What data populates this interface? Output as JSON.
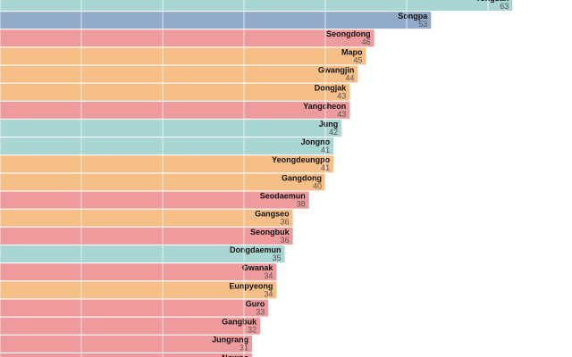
{
  "chart_data": {
    "type": "bar",
    "orientation": "horizontal",
    "categories": [
      "Yongsan",
      "Songpa",
      "Seongdong",
      "Mapo",
      "Gwangjin",
      "Dongjak",
      "Yangcheon",
      "Jung",
      "Jongno",
      "Yeongdeungpo",
      "Gangdong",
      "Seodaemun",
      "Gangseo",
      "Seongbuk",
      "Dongdaemun",
      "Gwanak",
      "Eunpyeong",
      "Guro",
      "Gangbuk",
      "Jungrang",
      "Nowon"
    ],
    "values": [
      63,
      53,
      46,
      45,
      44,
      43,
      43,
      42,
      41,
      41,
      40,
      38,
      36,
      36,
      35,
      34,
      34,
      33,
      32,
      31,
      31
    ],
    "colors": [
      "#a9d6d2",
      "#91abc9",
      "#ee9b9d",
      "#f6bf88",
      "#f6bf88",
      "#f6bf88",
      "#ee9b9d",
      "#a9d6d2",
      "#a9d6d2",
      "#f6bf88",
      "#f6bf88",
      "#ee9b9d",
      "#f6bf88",
      "#ee9b9d",
      "#a9d6d2",
      "#ee9b9d",
      "#f6bf88",
      "#ee9b9d",
      "#ee9b9d",
      "#ee9b9d",
      "#ee9b9d"
    ],
    "xlim": [
      0,
      70
    ],
    "xticks": [
      0,
      10,
      20,
      30,
      40,
      50,
      60
    ],
    "grid": true
  }
}
